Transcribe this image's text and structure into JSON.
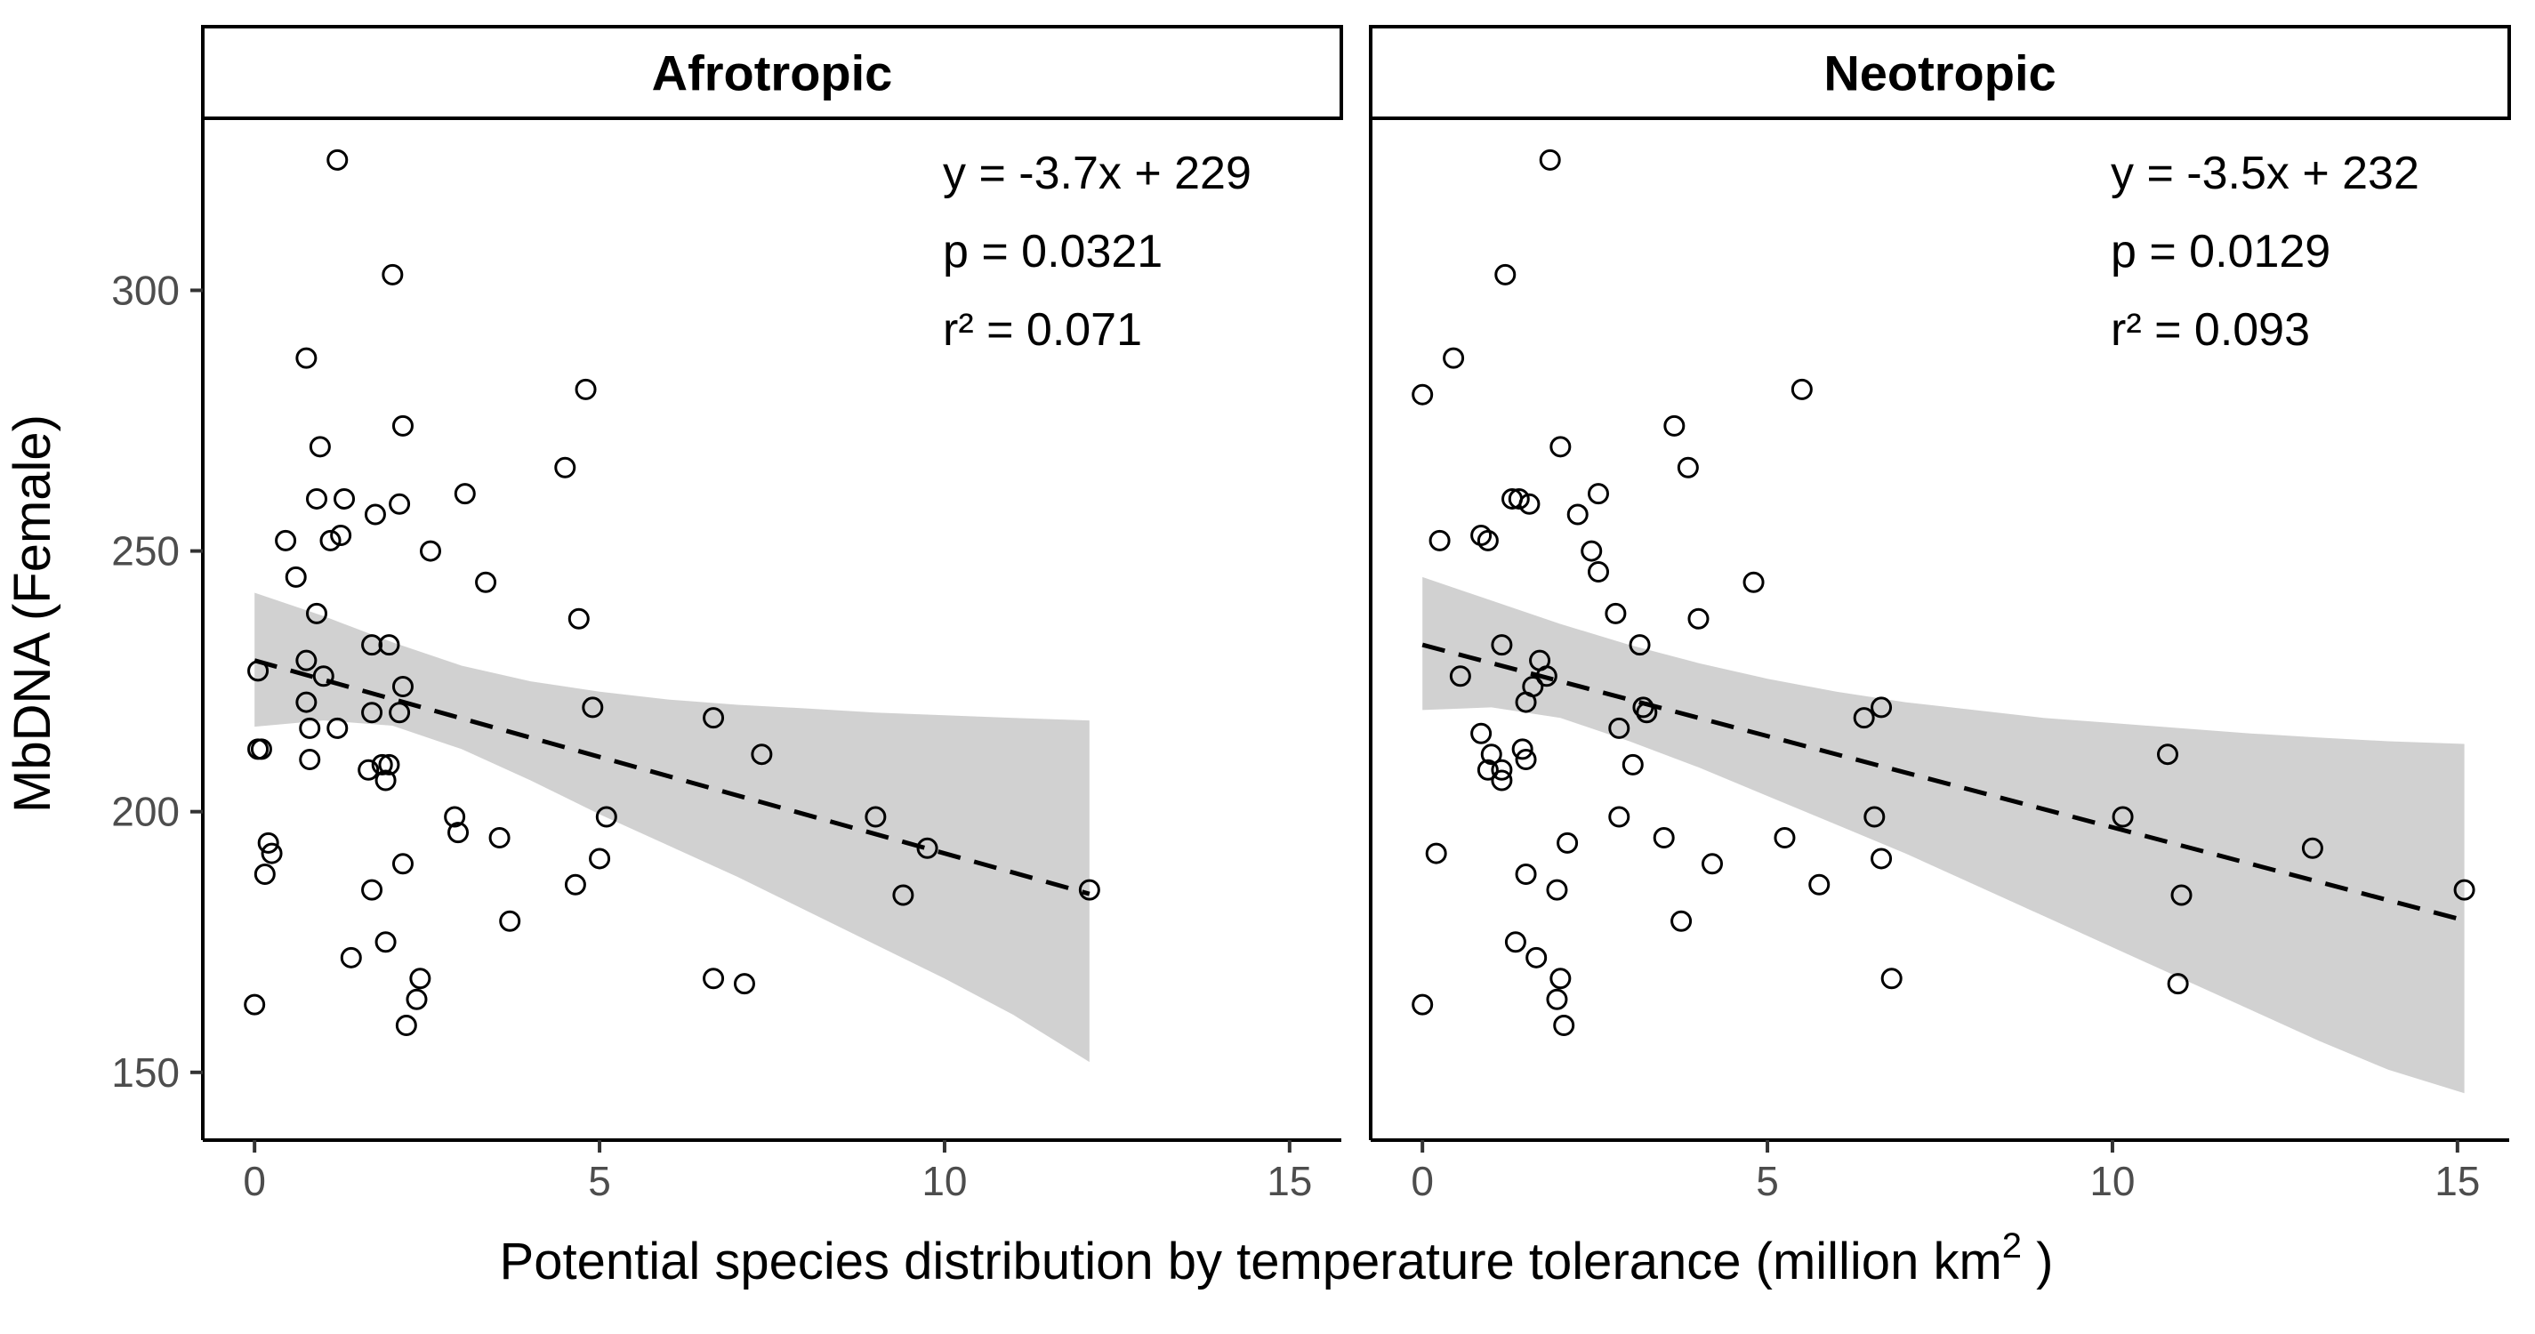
{
  "chart_data": {
    "type": "scatter",
    "ylabel": "MbDNA (Female)",
    "xlabel": "Potential species distribution by temperature tolerance (million km",
    "xlabel_superscript": "2",
    "xlabel_suffix": " )",
    "xlim": [
      -0.75,
      15.75
    ],
    "ylim": [
      137,
      333
    ],
    "xticks": [
      0,
      5,
      10,
      15
    ],
    "yticks": [
      150,
      200,
      250,
      300
    ],
    "x_tick_labels": [
      "0",
      "5",
      "10",
      "15"
    ],
    "y_tick_labels": [
      "150",
      "200",
      "250",
      "300"
    ],
    "grid": false,
    "point_style": "open-circle",
    "fit_line_style": "dashed",
    "ci_color": "#bfbfbf",
    "panels": [
      {
        "title": "Afrotropic",
        "equation": "y = -3.7x + 229",
        "p_value": "p = 0.0321",
        "r_squared": "r² = 0.071",
        "fit": {
          "slope": -3.7,
          "intercept": 229,
          "x_range": [
            0,
            12.1
          ]
        },
        "ci": {
          "x": [
            0,
            1,
            2,
            3,
            4,
            5,
            6,
            7,
            8,
            9,
            10,
            11,
            12.1
          ],
          "lower": [
            216.3,
            217.5,
            216.5,
            212.0,
            206.0,
            199.5,
            193.5,
            187.5,
            181.0,
            174.5,
            168.0,
            161.0,
            152.0
          ],
          "upper": [
            242.0,
            237.5,
            232.5,
            228.0,
            225.0,
            223.0,
            221.5,
            220.5,
            219.8,
            219.0,
            218.5,
            218.0,
            217.5
          ]
        },
        "points": [
          [
            1.2,
            325
          ],
          [
            2.0,
            303
          ],
          [
            0.75,
            287
          ],
          [
            4.8,
            281
          ],
          [
            2.15,
            274
          ],
          [
            0.95,
            270
          ],
          [
            3.05,
            261
          ],
          [
            4.5,
            266
          ],
          [
            0.9,
            260
          ],
          [
            1.3,
            260
          ],
          [
            2.1,
            259
          ],
          [
            1.75,
            257
          ],
          [
            1.25,
            253
          ],
          [
            1.1,
            252
          ],
          [
            0.45,
            252
          ],
          [
            2.55,
            250
          ],
          [
            3.35,
            244
          ],
          [
            0.6,
            245
          ],
          [
            4.7,
            237
          ],
          [
            0.9,
            238
          ],
          [
            1.7,
            232
          ],
          [
            1.95,
            232
          ],
          [
            0.05,
            227
          ],
          [
            1.0,
            226
          ],
          [
            0.75,
            229
          ],
          [
            2.15,
            224
          ],
          [
            0.75,
            221
          ],
          [
            4.9,
            220
          ],
          [
            2.1,
            219
          ],
          [
            1.7,
            219
          ],
          [
            0.8,
            216
          ],
          [
            1.2,
            216
          ],
          [
            6.65,
            218
          ],
          [
            7.35,
            211
          ],
          [
            0.05,
            212
          ],
          [
            0.1,
            212
          ],
          [
            0.8,
            210
          ],
          [
            1.65,
            208
          ],
          [
            1.85,
            209
          ],
          [
            1.95,
            209
          ],
          [
            1.9,
            206
          ],
          [
            9.0,
            199
          ],
          [
            9.75,
            193
          ],
          [
            2.9,
            199
          ],
          [
            5.1,
            199
          ],
          [
            2.95,
            196
          ],
          [
            3.55,
            195
          ],
          [
            0.2,
            194
          ],
          [
            0.25,
            192
          ],
          [
            5.0,
            191
          ],
          [
            2.15,
            190
          ],
          [
            0.15,
            188
          ],
          [
            4.65,
            186
          ],
          [
            1.7,
            185
          ],
          [
            9.4,
            184
          ],
          [
            12.1,
            185
          ],
          [
            3.7,
            179
          ],
          [
            1.9,
            175
          ],
          [
            1.4,
            172
          ],
          [
            2.4,
            168
          ],
          [
            6.65,
            168
          ],
          [
            7.1,
            167
          ],
          [
            2.35,
            164
          ],
          [
            0.0,
            163
          ],
          [
            2.2,
            159
          ]
        ]
      },
      {
        "title": "Neotropic",
        "equation": "y = -3.5x + 232",
        "p_value": "p = 0.0129",
        "r_squared": "r² = 0.093",
        "fit": {
          "slope": -3.5,
          "intercept": 232,
          "x_range": [
            0,
            15.1
          ]
        },
        "ci": {
          "x": [
            0,
            1,
            2,
            3,
            4,
            5,
            6,
            7,
            8,
            9,
            10,
            11,
            12,
            13,
            14,
            15.1
          ],
          "lower": [
            219.5,
            220.0,
            218.0,
            213.5,
            208.5,
            203.0,
            197.5,
            192.0,
            186.0,
            180.0,
            174.0,
            168.0,
            162.0,
            156.0,
            150.5,
            146.0
          ],
          "upper": [
            245.0,
            240.5,
            236.0,
            232.0,
            228.5,
            225.5,
            223.0,
            221.0,
            219.5,
            218.0,
            217.0,
            216.0,
            215.0,
            214.2,
            213.5,
            213.0
          ]
        },
        "points": [
          [
            1.85,
            325
          ],
          [
            1.2,
            303
          ],
          [
            0.45,
            287
          ],
          [
            0.0,
            280
          ],
          [
            5.5,
            281
          ],
          [
            3.65,
            274
          ],
          [
            2.0,
            270
          ],
          [
            3.85,
            266
          ],
          [
            2.55,
            261
          ],
          [
            1.3,
            260
          ],
          [
            1.4,
            260
          ],
          [
            1.55,
            259
          ],
          [
            2.25,
            257
          ],
          [
            0.25,
            252
          ],
          [
            0.85,
            253
          ],
          [
            0.95,
            252
          ],
          [
            2.45,
            250
          ],
          [
            2.55,
            246
          ],
          [
            4.8,
            244
          ],
          [
            2.8,
            238
          ],
          [
            4.0,
            237
          ],
          [
            1.15,
            232
          ],
          [
            3.15,
            232
          ],
          [
            1.7,
            229
          ],
          [
            0.55,
            226
          ],
          [
            1.8,
            226
          ],
          [
            1.6,
            224
          ],
          [
            1.5,
            221
          ],
          [
            3.25,
            219
          ],
          [
            3.2,
            220
          ],
          [
            6.65,
            220
          ],
          [
            6.4,
            218
          ],
          [
            2.85,
            216
          ],
          [
            0.85,
            215
          ],
          [
            1.45,
            212
          ],
          [
            1.0,
            211
          ],
          [
            1.5,
            210
          ],
          [
            10.8,
            211
          ],
          [
            3.05,
            209
          ],
          [
            0.95,
            208
          ],
          [
            1.15,
            208
          ],
          [
            1.15,
            206
          ],
          [
            6.55,
            199
          ],
          [
            10.15,
            199
          ],
          [
            2.85,
            199
          ],
          [
            3.5,
            195
          ],
          [
            5.25,
            195
          ],
          [
            2.1,
            194
          ],
          [
            12.9,
            193
          ],
          [
            0.2,
            192
          ],
          [
            6.65,
            191
          ],
          [
            4.2,
            190
          ],
          [
            1.5,
            188
          ],
          [
            5.75,
            186
          ],
          [
            1.95,
            185
          ],
          [
            11.0,
            184
          ],
          [
            15.1,
            185
          ],
          [
            3.75,
            179
          ],
          [
            1.35,
            175
          ],
          [
            1.65,
            172
          ],
          [
            6.8,
            168
          ],
          [
            2.0,
            168
          ],
          [
            10.95,
            167
          ],
          [
            1.95,
            164
          ],
          [
            0.0,
            163
          ],
          [
            2.05,
            159
          ]
        ]
      }
    ]
  }
}
